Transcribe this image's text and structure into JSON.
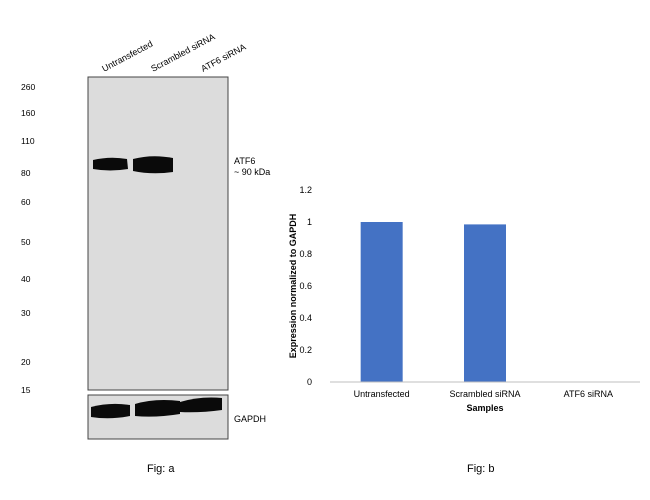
{
  "blot": {
    "lanes": [
      "Untransfected",
      "Scrambled siRNA",
      "ATF6 siRNA"
    ],
    "mw_markers": [
      "260",
      "160",
      "110",
      "80",
      "60",
      "50",
      "40",
      "30",
      "20",
      "15"
    ],
    "target_label": "ATF6",
    "target_size": "~ 90 kDa",
    "loading_control_label": "GAPDH",
    "caption": "Fig: a"
  },
  "caption_b": "Fig: b",
  "chart_data": {
    "type": "bar",
    "categories": [
      "Untransfected",
      "Scrambled siRNA",
      "ATF6 siRNA"
    ],
    "values": [
      1.0,
      0.985,
      0.0
    ],
    "xlabel": "Samples",
    "ylabel": "Expression normalized to GAPDH",
    "ylim": [
      0,
      1.2
    ],
    "yticks": [
      0,
      0.2,
      0.4,
      0.6,
      0.8,
      1,
      1.2
    ],
    "ytick_labels": [
      "0",
      "0.2",
      "0.4",
      "0.6",
      "0.8",
      "1",
      "1.2"
    ],
    "grid": false,
    "bar_color": "#4472C4"
  }
}
